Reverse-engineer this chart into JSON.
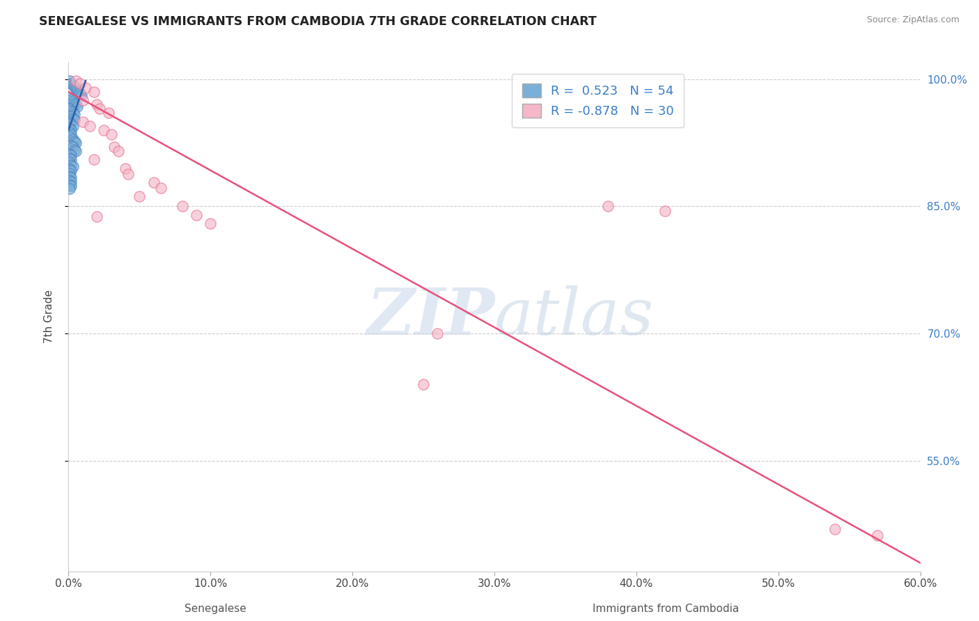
{
  "title": "SENEGALESE VS IMMIGRANTS FROM CAMBODIA 7TH GRADE CORRELATION CHART",
  "source_text": "Source: ZipAtlas.com",
  "ylabel": "7th Grade",
  "label_senegalese": "Senegalese",
  "label_cambodia": "Immigrants from Cambodia",
  "xlim": [
    0.0,
    0.6
  ],
  "ylim": [
    0.42,
    1.02
  ],
  "xticks": [
    0.0,
    0.1,
    0.2,
    0.3,
    0.4,
    0.5,
    0.6
  ],
  "xticklabels": [
    "0.0%",
    "10.0%",
    "20.0%",
    "30.0%",
    "40.0%",
    "50.0%",
    "60.0%"
  ],
  "ytick_vals": [
    0.55,
    0.7,
    0.85,
    1.0
  ],
  "ytick_labels_right": [
    "55.0%",
    "70.0%",
    "85.0%",
    "100.0%"
  ],
  "grid_color": "#cccccc",
  "background_color": "#ffffff",
  "senegalese_color": "#7ab0d8",
  "senegalese_edge_color": "#4a7fbf",
  "senegalese_line_color": "#2b5ca8",
  "cambodia_color": "#f5b8c8",
  "cambodia_edge_color": "#e87090",
  "cambodia_line_color": "#e8507a",
  "R_senegalese": 0.523,
  "N_senegalese": 54,
  "R_cambodia": -0.878,
  "N_cambodia": 30,
  "watermark_text": "ZIPatlas",
  "watermark_color": "#c5d8ea",
  "tick_label_color": "#3b7dc8",
  "senegalese_points_x": [
    0.001,
    0.002,
    0.003,
    0.004,
    0.005,
    0.006,
    0.007,
    0.008,
    0.009,
    0.001,
    0.002,
    0.003,
    0.004,
    0.005,
    0.006,
    0.001,
    0.002,
    0.003,
    0.004,
    0.002,
    0.003,
    0.004,
    0.001,
    0.002,
    0.003,
    0.001,
    0.002,
    0.001,
    0.002,
    0.001,
    0.003,
    0.004,
    0.005,
    0.002,
    0.003,
    0.004,
    0.005,
    0.001,
    0.002,
    0.001,
    0.002,
    0.001,
    0.002,
    0.003,
    0.001,
    0.002,
    0.001,
    0.001,
    0.002,
    0.001,
    0.002,
    0.001,
    0.002,
    0.001
  ],
  "senegalese_points_y": [
    0.998,
    0.995,
    0.993,
    0.991,
    0.989,
    0.987,
    0.985,
    0.983,
    0.981,
    0.978,
    0.976,
    0.974,
    0.972,
    0.97,
    0.968,
    0.965,
    0.963,
    0.961,
    0.959,
    0.956,
    0.954,
    0.952,
    0.949,
    0.947,
    0.945,
    0.942,
    0.94,
    0.937,
    0.935,
    0.932,
    0.929,
    0.927,
    0.925,
    0.922,
    0.92,
    0.917,
    0.915,
    0.912,
    0.91,
    0.907,
    0.905,
    0.902,
    0.899,
    0.897,
    0.894,
    0.892,
    0.889,
    0.886,
    0.884,
    0.881,
    0.879,
    0.876,
    0.874,
    0.871
  ],
  "cambodia_points_x": [
    0.005,
    0.008,
    0.012,
    0.018,
    0.01,
    0.02,
    0.022,
    0.028,
    0.01,
    0.015,
    0.025,
    0.03,
    0.032,
    0.035,
    0.018,
    0.04,
    0.042,
    0.06,
    0.065,
    0.05,
    0.08,
    0.09,
    0.1,
    0.26,
    0.38,
    0.42,
    0.25,
    0.54,
    0.57,
    0.02
  ],
  "cambodia_points_y": [
    0.998,
    0.995,
    0.99,
    0.985,
    0.975,
    0.97,
    0.965,
    0.96,
    0.95,
    0.945,
    0.94,
    0.935,
    0.92,
    0.915,
    0.905,
    0.895,
    0.888,
    0.878,
    0.872,
    0.862,
    0.85,
    0.84,
    0.83,
    0.7,
    0.85,
    0.845,
    0.64,
    0.47,
    0.462,
    0.838
  ],
  "senegalese_line_x": [
    0.0,
    0.012
  ],
  "senegalese_line_y": [
    0.94,
    0.998
  ],
  "cambodia_line_x": [
    0.0,
    0.6
  ],
  "cambodia_line_y": [
    0.985,
    0.43
  ]
}
